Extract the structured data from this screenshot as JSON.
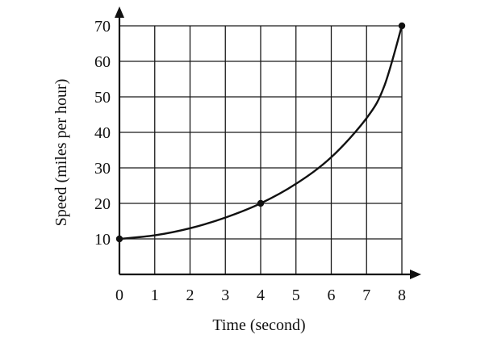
{
  "chart_data": {
    "type": "line",
    "title": "",
    "xlabel": "Time (second)",
    "ylabel": "Speed (miles per hour)",
    "xlim": [
      0,
      8
    ],
    "ylim": [
      0,
      70
    ],
    "x_ticks": [
      0,
      1,
      2,
      3,
      4,
      5,
      6,
      7,
      8
    ],
    "y_ticks": [
      10,
      20,
      30,
      40,
      50,
      60,
      70
    ],
    "x_tick_labels": [
      "0",
      "1",
      "2",
      "3",
      "4",
      "5",
      "6",
      "7",
      "8"
    ],
    "y_tick_labels": [
      "10",
      "20",
      "30",
      "40",
      "50",
      "60",
      "70"
    ],
    "grid": true,
    "series": [
      {
        "x": [
          0,
          1,
          2,
          3,
          4,
          5,
          6,
          7,
          7.5,
          8
        ],
        "y": [
          10,
          11,
          13,
          16,
          20,
          25.5,
          33,
          44,
          53,
          70
        ]
      }
    ],
    "marked_points": [
      {
        "x": 0,
        "y": 10
      },
      {
        "x": 4,
        "y": 20
      },
      {
        "x": 8,
        "y": 70
      }
    ]
  },
  "colors": {
    "line": "#111111",
    "grid": "#1a1a1a",
    "axis": "#111111",
    "background": "#ffffff"
  }
}
